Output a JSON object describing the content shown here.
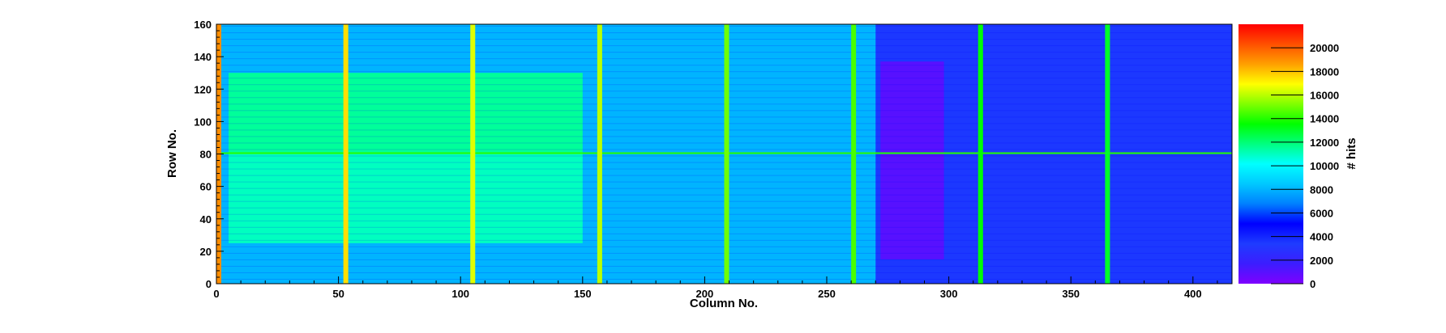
{
  "chart_data": {
    "type": "heatmap",
    "xlabel": "Column No.",
    "ylabel": "Row No.",
    "zlabel": "# hits",
    "xlim": [
      0,
      416
    ],
    "ylim": [
      0,
      160
    ],
    "zlim": [
      0,
      22000
    ],
    "x_ticks": [
      0,
      50,
      100,
      150,
      200,
      250,
      300,
      350,
      400
    ],
    "y_ticks": [
      0,
      20,
      40,
      60,
      80,
      100,
      120,
      140,
      160
    ],
    "z_ticks": [
      0,
      2000,
      4000,
      6000,
      8000,
      10000,
      12000,
      14000,
      16000,
      18000,
      20000
    ],
    "colorscale": [
      "#7f00ff",
      "#3c1dff",
      "#1e3cff",
      "#0000ff",
      "#0080ff",
      "#00c8ff",
      "#00ffff",
      "#00ff80",
      "#00ff00",
      "#80ff00",
      "#ffff00",
      "#ffa000",
      "#ff5000",
      "#ff0000"
    ],
    "regions": [
      {
        "x": [
          0,
          270
        ],
        "y": [
          0,
          160
        ],
        "hits": 8000
      },
      {
        "x": [
          5,
          150
        ],
        "y": [
          80,
          130
        ],
        "hits": 11500
      },
      {
        "x": [
          5,
          150
        ],
        "y": [
          25,
          80
        ],
        "hits": 11000
      },
      {
        "x": [
          155,
          270
        ],
        "y": [
          20,
          140
        ],
        "hits": 8000
      },
      {
        "x": [
          270,
          416
        ],
        "y": [
          0,
          160
        ],
        "hits": 3500
      },
      {
        "x": [
          272,
          298
        ],
        "y": [
          15,
          137
        ],
        "hits": 1000
      }
    ],
    "hot_columns": [
      {
        "x": 0,
        "hits": 19000
      },
      {
        "x": 52,
        "hits": 17500
      },
      {
        "x": 104,
        "hits": 16500
      },
      {
        "x": 156,
        "hits": 16000
      },
      {
        "x": 208,
        "hits": 15000
      },
      {
        "x": 260,
        "hits": 14500
      },
      {
        "x": 312,
        "hits": 13500
      },
      {
        "x": 364,
        "hits": 13000
      }
    ],
    "hot_rows": [
      {
        "y": 80,
        "hits": 14000
      }
    ]
  }
}
